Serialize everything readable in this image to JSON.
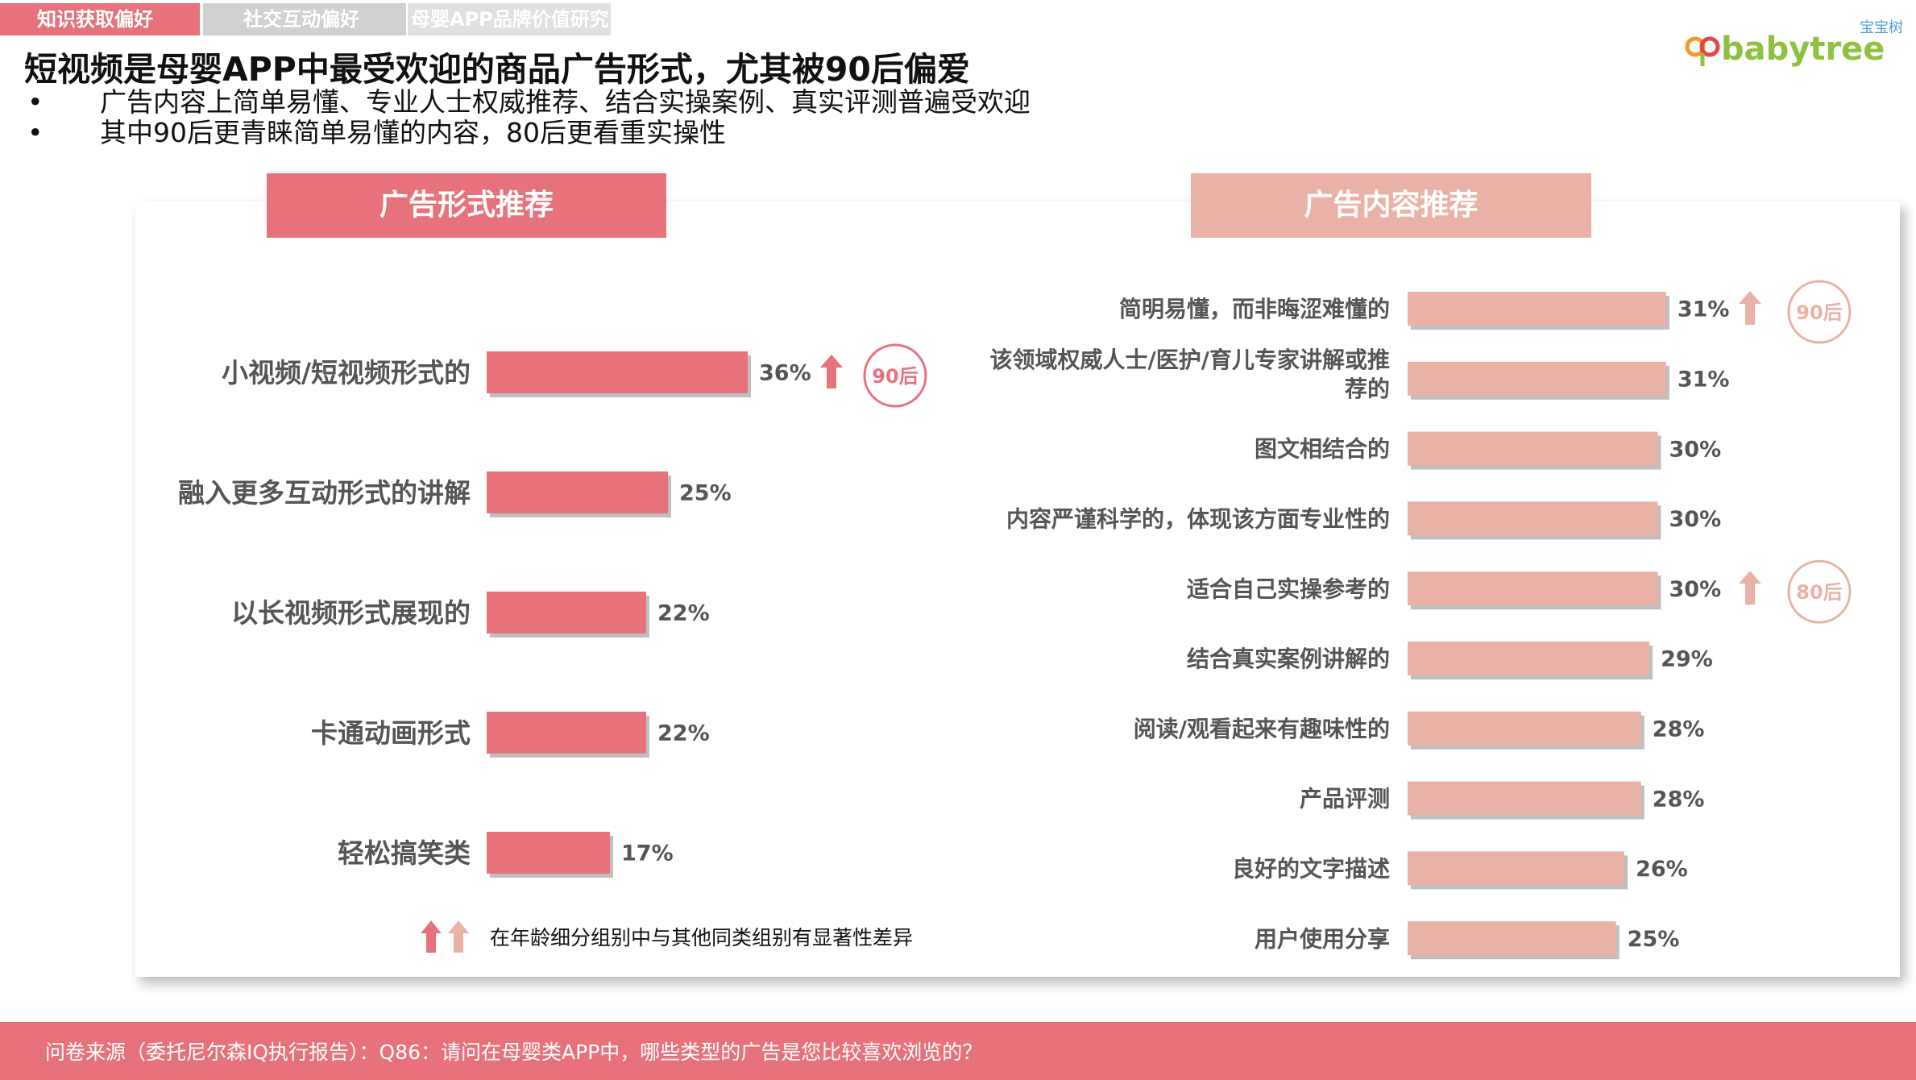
{
  "tabs": [
    "知识获取偏好",
    "社交互动偏好",
    "母婴APP品牌价值研究"
  ],
  "title": "短视频是母婴APP中最受欢迎的商品广告形式，尤其被90后偏爱",
  "bullets": [
    "广告内容上简单易懂、专业人士权威推荐、结合实操案例、真实评测普遍受欢迎",
    "其中90后更青睐简单易懂的内容，80后更看重实操性"
  ],
  "bullet_symbol": "•",
  "logo": {
    "brand": "babytree",
    "cn": "宝宝树",
    "colors": [
      "#f29a21",
      "#e8434a",
      "#4a9fd8",
      "#8dc13f"
    ]
  },
  "legend_text": "在年龄细分组别中与其他同类组别有显著性差异",
  "footer": "问卷来源（委托尼尔森IQ执行报告）：Q86：请问在母婴类APP中，哪些类型的广告是您比较喜欢浏览的？",
  "colors": {
    "accent": "#e8727c",
    "accent_light": "#eab2a7",
    "label": "#555555"
  },
  "chart_data": [
    {
      "type": "bar",
      "orientation": "horizontal",
      "title": "广告形式推荐",
      "categories": [
        "小视频/短视频形式的",
        "融入更多互动形式的讲解",
        "以长视频形式展现的",
        "卡通动画形式",
        "轻松搞笑类"
      ],
      "values": [
        36,
        25,
        22,
        22,
        17
      ],
      "labels": [
        "36%",
        "25%",
        "22%",
        "22%",
        "17%"
      ],
      "unit": "%",
      "color": "#e8727c",
      "highlights": [
        {
          "index": 0,
          "badge": "90后"
        }
      ]
    },
    {
      "type": "bar",
      "orientation": "horizontal",
      "title": "广告内容推荐",
      "categories": [
        "简明易懂，而非晦涩难懂的",
        [
          "该领域权威人士/医护/育儿专家讲解或推",
          "荐的"
        ],
        "图文相结合的",
        "内容严谨科学的，体现该方面专业性的",
        "适合自己实操参考的",
        "结合真实案例讲解的",
        "阅读/观看起来有趣味性的",
        "产品评测",
        "良好的文字描述",
        "用户使用分享"
      ],
      "values": [
        31,
        31,
        30,
        30,
        30,
        29,
        28,
        28,
        26,
        25
      ],
      "labels": [
        "31%",
        "31%",
        "30%",
        "30%",
        "30%",
        "29%",
        "28%",
        "28%",
        "26%",
        "25%"
      ],
      "unit": "%",
      "color": "#eab2a7",
      "highlights": [
        {
          "index": 0,
          "badge": "90后"
        },
        {
          "index": 4,
          "badge": "80后"
        }
      ]
    }
  ]
}
